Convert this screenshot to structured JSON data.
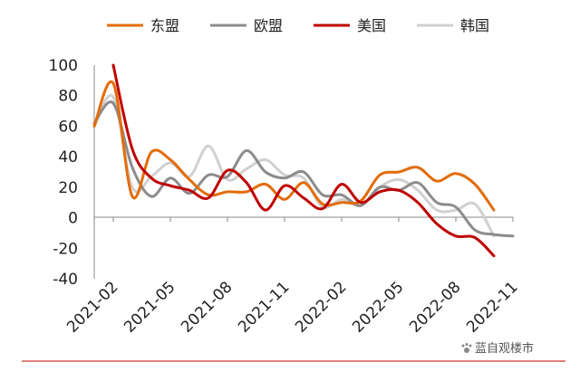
{
  "chart_data": {
    "type": "line",
    "x": [
      "2021-01",
      "2021-02",
      "2021-03",
      "2021-04",
      "2021-05",
      "2021-06",
      "2021-07",
      "2021-08",
      "2021-09",
      "2021-10",
      "2021-11",
      "2021-12",
      "2022-01",
      "2022-02",
      "2022-03",
      "2022-04",
      "2022-05",
      "2022-06",
      "2022-07",
      "2022-08",
      "2022-09",
      "2022-10",
      "2022-11"
    ],
    "x_tick_labels": [
      "2021-02",
      "2021-05",
      "2021-08",
      "2021-11",
      "2022-02",
      "2022-05",
      "2022-08",
      "2022-11"
    ],
    "ylim": [
      -40,
      100
    ],
    "y_ticks": [
      -40,
      -20,
      0,
      20,
      40,
      60,
      80,
      100
    ],
    "legend_position": "top",
    "series": [
      {
        "name": "东盟",
        "color": "#E36C0A",
        "values": [
          60,
          88,
          14,
          43,
          38,
          25,
          15,
          17,
          17,
          22,
          12,
          23,
          9,
          10,
          11,
          28,
          30,
          33,
          24,
          29,
          22,
          5,
          null
        ]
      },
      {
        "name": "欧盟",
        "color": "#8C8C8C",
        "values": [
          62,
          75,
          33,
          14,
          26,
          16,
          28,
          27,
          44,
          30,
          26,
          30,
          15,
          15,
          8,
          20,
          18,
          23,
          10,
          7,
          -8,
          -11,
          -12
        ]
      },
      {
        "name": "美国",
        "color": "#C00000",
        "values": [
          null,
          100,
          45,
          26,
          21,
          18,
          13,
          31,
          23,
          5,
          21,
          13,
          6,
          22,
          10,
          17,
          18,
          10,
          -4,
          -12,
          -13,
          -25,
          null
        ]
      },
      {
        "name": "韩国",
        "color": "#D0D0D0",
        "values": [
          60,
          79,
          20,
          27,
          36,
          27,
          47,
          25,
          32,
          38,
          28,
          26,
          7,
          12,
          8,
          20,
          25,
          18,
          5,
          5,
          9,
          -12,
          null
        ]
      }
    ]
  },
  "watermark": {
    "text": "蓝自观楼市",
    "icon": "paw-icon"
  }
}
